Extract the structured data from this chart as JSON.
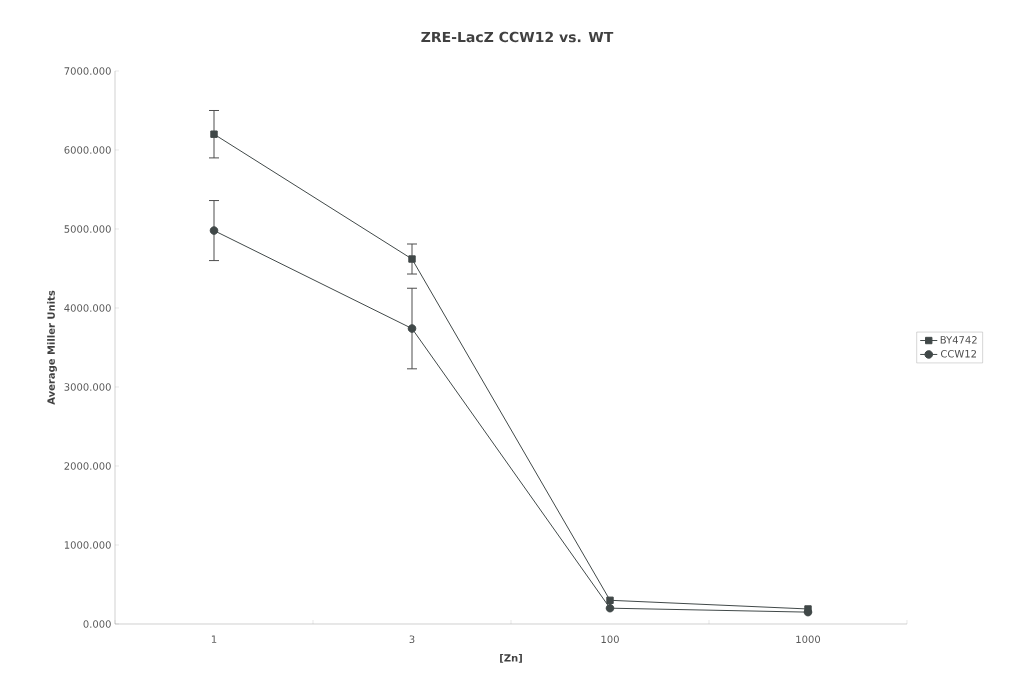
{
  "chart_data": {
    "type": "line",
    "title": "ZRE-LacZ CCW12 vs. WT",
    "xlabel": "[Zn]",
    "ylabel": "Average Miller Units",
    "categories": [
      "1",
      "3",
      "100",
      "1000"
    ],
    "series": [
      {
        "name": "BY4742",
        "color": "#404848",
        "marker": "square",
        "values": [
          6200,
          4620,
          300,
          190
        ],
        "errors": [
          300,
          190,
          null,
          null
        ]
      },
      {
        "name": "CCW12",
        "color": "#404848",
        "marker": "circle",
        "values": [
          4980,
          3740,
          200,
          150
        ],
        "errors": [
          380,
          510,
          null,
          null
        ]
      }
    ],
    "ylim": [
      0,
      7000
    ],
    "yticks": [
      {
        "value": 0,
        "label": "0.000"
      },
      {
        "value": 1000,
        "label": "1000.000"
      },
      {
        "value": 2000,
        "label": "2000.000"
      },
      {
        "value": 3000,
        "label": "3000.000"
      },
      {
        "value": 4000,
        "label": "4000.000"
      },
      {
        "value": 5000,
        "label": "5000.000"
      },
      {
        "value": 6000,
        "label": "6000.000"
      },
      {
        "value": 7000,
        "label": "7000.000"
      }
    ],
    "grid": false,
    "legend": "right",
    "line_style": "solid"
  }
}
